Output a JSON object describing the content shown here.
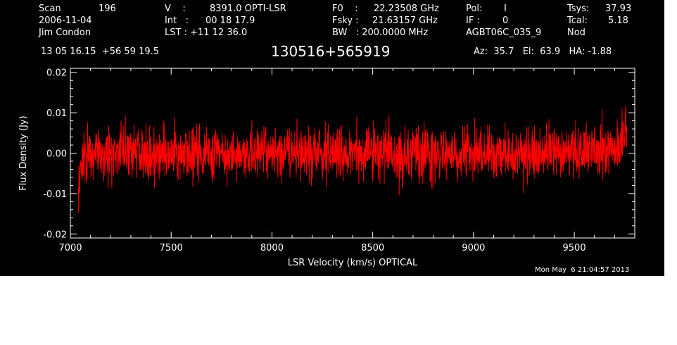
{
  "header": {
    "row1": [
      {
        "label": "Scan",
        "value": "196"
      },
      {
        "label": "V    :",
        "value": "8391.0 OPTI-LSR"
      },
      {
        "label": "F0    :",
        "value": "22.23508 GHz"
      },
      {
        "label": "Pol:",
        "value": "I"
      },
      {
        "label": "Tsys:",
        "value": "37.93"
      }
    ],
    "row2": [
      {
        "label": "2006-11-04",
        "value": ""
      },
      {
        "label": "Int   :",
        "value": "00 18 17.9"
      },
      {
        "label": "Fsky :",
        "value": "21.63157 GHz"
      },
      {
        "label": "IF :",
        "value": "0"
      },
      {
        "label": "Tcal:",
        "value": "5.18"
      }
    ],
    "row3": [
      {
        "label": "Jim Condon",
        "value": ""
      },
      {
        "label": "LST : +11 12 36.0",
        "value": ""
      },
      {
        "label": "BW   : 200.0000 MHz",
        "value": ""
      },
      {
        "label": "AGBT06C_035_9",
        "value": ""
      },
      {
        "label": "Nod",
        "value": ""
      }
    ],
    "coords": "13 05 16.15  +56 59 19.5",
    "source": "130516+565919",
    "pointing": "Az:  35.7   El:  63.9   HA: -1.88",
    "timestamp": "Mon May  6 21:04:57 2013"
  },
  "chart_data": {
    "type": "line",
    "xlabel": "LSR Velocity (km/s) OPTICAL",
    "ylabel": "Flux Density (Jy)",
    "xlim": [
      7000,
      9800
    ],
    "ylim": [
      -0.021,
      0.021
    ],
    "x_ticks": [
      7000,
      7500,
      8000,
      8500,
      9000,
      9500
    ],
    "y_ticks": [
      -0.02,
      -0.01,
      0.0,
      0.01,
      0.02
    ],
    "y_tick_labels": [
      "-0.02",
      "-0.01",
      "0.00",
      "0.01",
      "0.02"
    ],
    "series": [
      {
        "color": "#ff0000",
        "x_range": [
          7040,
          9760
        ],
        "noise_rms_jy": 0.0045,
        "x": [
          7040,
          7050,
          7060,
          7080,
          7100,
          7150,
          7300,
          7500,
          8000,
          8500,
          9000,
          9500,
          9700,
          9730,
          9750,
          9760
        ],
        "y": [
          -0.009,
          -0.004,
          -0.002,
          -0.001,
          0.0,
          0.0,
          0.0,
          0.0,
          0.0,
          0.0,
          0.0,
          0.0,
          0.001,
          0.003,
          0.006,
          0.008
        ]
      }
    ]
  },
  "colors": {
    "background": "#000000",
    "axes": "#ffffff",
    "trace": "#ff0000"
  }
}
